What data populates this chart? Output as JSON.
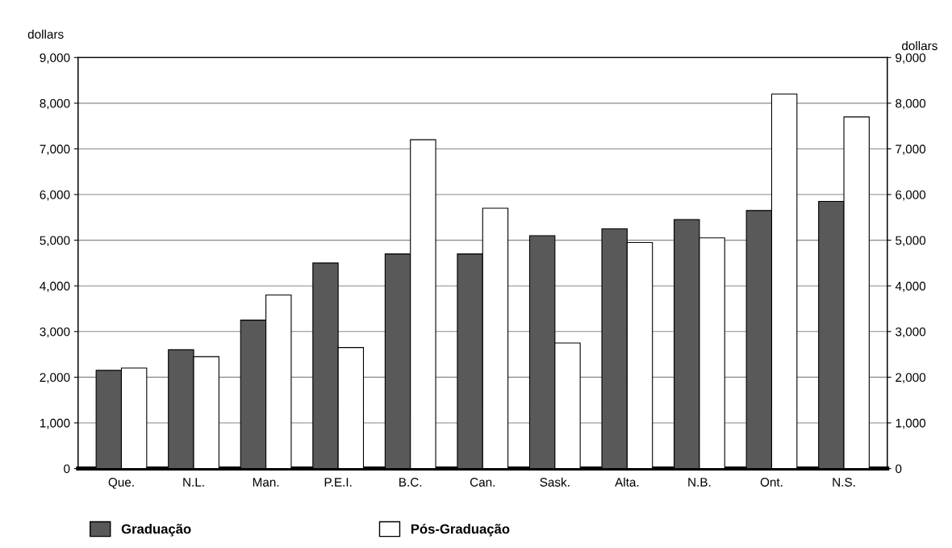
{
  "chart_data": {
    "type": "bar",
    "categories": [
      "Que.",
      "N.L.",
      "Man.",
      "P.E.I.",
      "B.C.",
      "Can.",
      "Sask.",
      "Alta.",
      "N.B.",
      "Ont.",
      "N.S."
    ],
    "series": [
      {
        "name": "Graduação",
        "color": "#595959",
        "values": [
          2150,
          2600,
          3250,
          4500,
          4700,
          4700,
          5100,
          5250,
          5450,
          5650,
          5850
        ]
      },
      {
        "name": "Pós-Graduação",
        "color": "#ffffff",
        "values": [
          2200,
          2450,
          3800,
          2650,
          7200,
          5700,
          2750,
          4950,
          5050,
          8200,
          7700
        ]
      }
    ],
    "ylabel": "dollars",
    "y2label": "dollars",
    "ylim": [
      0,
      9000
    ],
    "yticks": [
      0,
      {
        "value": 1000,
        "label": "1,000"
      },
      {
        "value": 2000,
        "label": "2,000"
      },
      {
        "value": 3000,
        "label": "3,000"
      },
      {
        "value": 4000,
        "label": "4,000"
      },
      {
        "value": 5000,
        "label": "5,000"
      },
      {
        "value": 6000,
        "label": "6,000"
      },
      {
        "value": 7000,
        "label": "7,000"
      },
      {
        "value": 8000,
        "label": "8,000"
      },
      {
        "value": 9000,
        "label": "9,000"
      }
    ],
    "y2lim": [
      0,
      9000
    ],
    "y2ticks": [
      0,
      {
        "value": 1000,
        "label": "1,000"
      },
      {
        "value": 2000,
        "label": "2,000"
      },
      {
        "value": 3000,
        "label": "3,000"
      },
      {
        "value": 4000,
        "label": "4,000"
      },
      {
        "value": 5000,
        "label": "5,000"
      },
      {
        "value": 6000,
        "label": "6,000"
      },
      {
        "value": 7000,
        "label": "7,000"
      },
      {
        "value": 8000,
        "label": "8,000"
      },
      {
        "value": 9000,
        "label": "9,000"
      }
    ],
    "grid": "y",
    "legend": "bottom"
  }
}
